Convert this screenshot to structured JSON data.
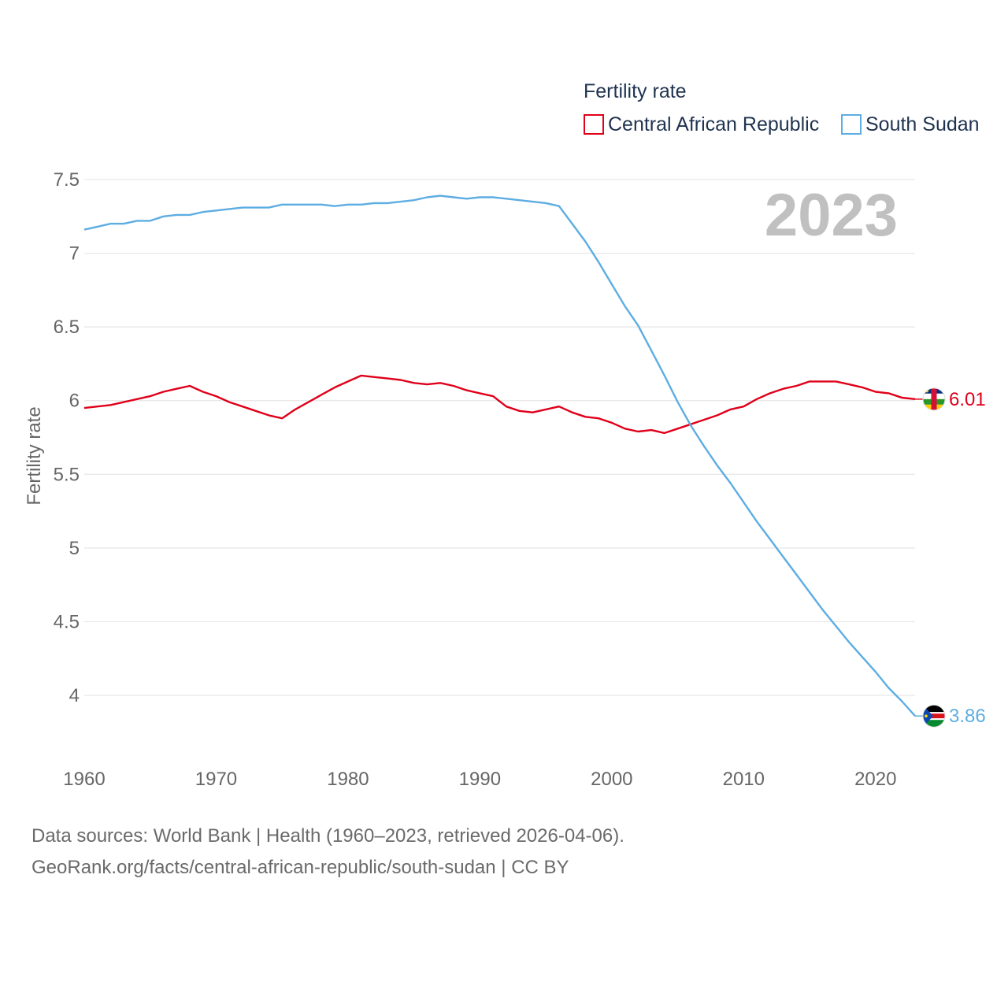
{
  "chart_data": {
    "type": "line",
    "year_label": "2023",
    "ylabel": "Fertility rate",
    "xlabel": "",
    "xlim": [
      1960,
      2023
    ],
    "ylim": [
      3.5,
      7.5
    ],
    "x_ticks": [
      "1960",
      "1970",
      "1980",
      "1990",
      "2000",
      "2010",
      "2020"
    ],
    "y_ticks": [
      "4",
      "4.5",
      "5",
      "5.5",
      "6",
      "6.5",
      "7",
      "7.5"
    ],
    "legend": {
      "title": "Fertility rate",
      "position": "top-right"
    },
    "series": [
      {
        "name": "Central African Republic",
        "color": "#e0001a",
        "end_label": "6.01",
        "flag_icon": "central-african-republic-flag-icon",
        "x": [
          1960,
          1961,
          1962,
          1963,
          1964,
          1965,
          1966,
          1967,
          1968,
          1969,
          1970,
          1971,
          1972,
          1973,
          1974,
          1975,
          1976,
          1977,
          1978,
          1979,
          1980,
          1981,
          1982,
          1983,
          1984,
          1985,
          1986,
          1987,
          1988,
          1989,
          1990,
          1991,
          1992,
          1993,
          1994,
          1995,
          1996,
          1997,
          1998,
          1999,
          2000,
          2001,
          2002,
          2003,
          2004,
          2005,
          2006,
          2007,
          2008,
          2009,
          2010,
          2011,
          2012,
          2013,
          2014,
          2015,
          2016,
          2017,
          2018,
          2019,
          2020,
          2021,
          2022,
          2023
        ],
        "values": [
          5.95,
          5.96,
          5.97,
          5.99,
          6.01,
          6.03,
          6.06,
          6.08,
          6.1,
          6.06,
          6.03,
          5.99,
          5.96,
          5.93,
          5.9,
          5.88,
          5.94,
          5.99,
          6.04,
          6.09,
          6.13,
          6.17,
          6.16,
          6.15,
          6.14,
          6.12,
          6.11,
          6.12,
          6.1,
          6.07,
          6.05,
          6.03,
          5.96,
          5.93,
          5.92,
          5.94,
          5.96,
          5.92,
          5.89,
          5.88,
          5.85,
          5.81,
          5.79,
          5.8,
          5.78,
          5.81,
          5.84,
          5.87,
          5.9,
          5.94,
          5.96,
          6.01,
          6.05,
          6.08,
          6.1,
          6.13,
          6.13,
          6.13,
          6.11,
          6.09,
          6.06,
          6.05,
          6.02,
          6.01
        ]
      },
      {
        "name": "South Sudan",
        "color": "#5dade2",
        "end_label": "3.86",
        "flag_icon": "south-sudan-flag-icon",
        "x": [
          1960,
          1961,
          1962,
          1963,
          1964,
          1965,
          1966,
          1967,
          1968,
          1969,
          1970,
          1971,
          1972,
          1973,
          1974,
          1975,
          1976,
          1977,
          1978,
          1979,
          1980,
          1981,
          1982,
          1983,
          1984,
          1985,
          1986,
          1987,
          1988,
          1989,
          1990,
          1991,
          1992,
          1993,
          1994,
          1995,
          1996,
          1997,
          1998,
          1999,
          2000,
          2001,
          2002,
          2003,
          2004,
          2005,
          2006,
          2007,
          2008,
          2009,
          2010,
          2011,
          2012,
          2013,
          2014,
          2015,
          2016,
          2017,
          2018,
          2019,
          2020,
          2021,
          2022,
          2023
        ],
        "values": [
          7.16,
          7.18,
          7.2,
          7.2,
          7.22,
          7.22,
          7.25,
          7.26,
          7.26,
          7.28,
          7.29,
          7.3,
          7.31,
          7.31,
          7.31,
          7.33,
          7.33,
          7.33,
          7.33,
          7.32,
          7.33,
          7.33,
          7.34,
          7.34,
          7.35,
          7.36,
          7.38,
          7.39,
          7.38,
          7.37,
          7.38,
          7.38,
          7.37,
          7.36,
          7.35,
          7.34,
          7.32,
          7.2,
          7.08,
          6.94,
          6.79,
          6.64,
          6.51,
          6.34,
          6.17,
          5.99,
          5.83,
          5.69,
          5.56,
          5.44,
          5.31,
          5.18,
          5.06,
          4.94,
          4.82,
          4.7,
          4.58,
          4.47,
          4.36,
          4.26,
          4.16,
          4.05,
          3.96,
          3.86
        ]
      }
    ]
  },
  "source": {
    "line1": "Data sources: World Bank | Health (1960–2023, retrieved 2026-04-06).",
    "line2": "GeoRank.org/facts/central-african-republic/south-sudan | CC BY"
  }
}
